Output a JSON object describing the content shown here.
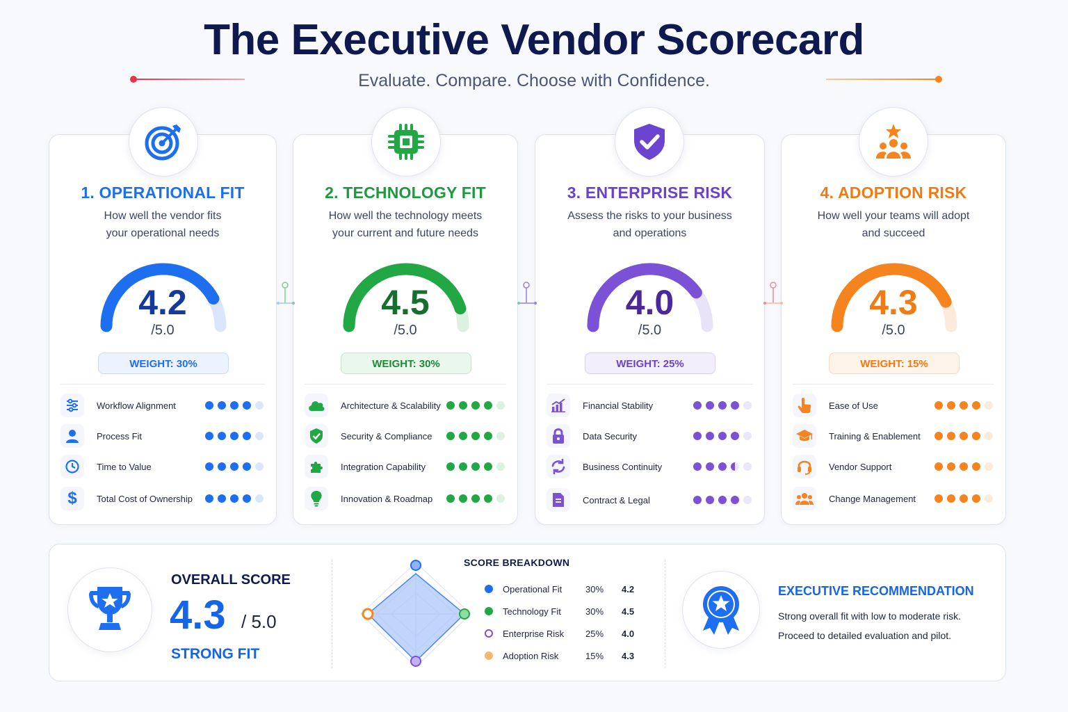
{
  "header": {
    "title": "The Executive Vendor Scorecard",
    "subtitle": "Evaluate. Compare. Choose with Confidence."
  },
  "colors": {
    "navy": "#0e1a4f",
    "operational": "#1e6ff0",
    "technology": "#21a845",
    "enterprise": "#7b52d6",
    "adoption": "#f5841f",
    "accent_red": "#e8334a"
  },
  "cards": [
    {
      "title": "1. OPERATIONAL FIT",
      "description_lines": [
        "How well the vendor fits",
        "your operational needs"
      ],
      "icon": "target-icon",
      "score": "4.2",
      "score_value": 4.2,
      "max": "/5.0",
      "weight": "WEIGHT: 30%",
      "criteria": [
        {
          "label": "Workflow Alignment",
          "icon": "sliders-icon",
          "rating": 4
        },
        {
          "label": "Process Fit",
          "icon": "user-icon",
          "rating": 4
        },
        {
          "label": "Time to Value",
          "icon": "clock-icon",
          "rating": 4
        },
        {
          "label": "Total Cost of Ownership",
          "icon": "dollar-icon",
          "rating": 4
        }
      ]
    },
    {
      "title": "2. TECHNOLOGY FIT",
      "description_lines": [
        "How well the technology meets",
        "your current and future needs"
      ],
      "icon": "chip-icon",
      "score": "4.5",
      "score_value": 4.5,
      "max": "/5.0",
      "weight": "WEIGHT: 30%",
      "criteria": [
        {
          "label": "Architecture & Scalability",
          "icon": "cloud-icon",
          "rating": 4
        },
        {
          "label": "Security & Compliance",
          "icon": "shield-check-icon",
          "rating": 4
        },
        {
          "label": "Integration Capability",
          "icon": "puzzle-icon",
          "rating": 4
        },
        {
          "label": "Innovation & Roadmap",
          "icon": "lightbulb-icon",
          "rating": 4
        }
      ]
    },
    {
      "title": "3. ENTERPRISE RISK",
      "description_lines": [
        "Assess the risks to your business",
        "and operations"
      ],
      "icon": "shield-check-icon",
      "score": "4.0",
      "score_value": 4.0,
      "max": "/5.0",
      "weight": "WEIGHT: 25%",
      "criteria": [
        {
          "label": "Financial Stability",
          "icon": "bar-chart-icon",
          "rating": 4
        },
        {
          "label": "Data Security",
          "icon": "lock-icon",
          "rating": 4
        },
        {
          "label": "Business Continuity",
          "icon": "refresh-icon",
          "rating": 3.5
        },
        {
          "label": "Contract & Legal",
          "icon": "document-icon",
          "rating": 4
        }
      ]
    },
    {
      "title": "4. ADOPTION RISK",
      "description_lines": [
        "How well your teams will adopt",
        "and succeed"
      ],
      "icon": "team-star-icon",
      "score": "4.3",
      "score_value": 4.3,
      "max": "/5.0",
      "weight": "WEIGHT: 15%",
      "criteria": [
        {
          "label": "Ease of Use",
          "icon": "hand-pointer-icon",
          "rating": 4
        },
        {
          "label": "Training & Enablement",
          "icon": "graduation-cap-icon",
          "rating": 4
        },
        {
          "label": "Vendor Support",
          "icon": "headset-icon",
          "rating": 4
        },
        {
          "label": "Change Management",
          "icon": "team-icon",
          "rating": 4
        }
      ]
    }
  ],
  "overall": {
    "label": "OVERALL SCORE",
    "score": "4.3",
    "max": "/ 5.0",
    "verdict": "STRONG FIT"
  },
  "breakdown": {
    "title": "SCORE BREAKDOWN",
    "rows": [
      {
        "name": "Operational Fit",
        "weight": "30%",
        "score": "4.2"
      },
      {
        "name": "Technology Fit",
        "weight": "30%",
        "score": "4.5"
      },
      {
        "name": "Enterprise Risk",
        "weight": "25%",
        "score": "4.0"
      },
      {
        "name": "Adoption Risk",
        "weight": "15%",
        "score": "4.3"
      }
    ]
  },
  "recommendation": {
    "title": "EXECUTIVE RECOMMENDATION",
    "lines": [
      "Strong overall fit with low to moderate risk.",
      "Proceed to detailed evaluation and pilot."
    ]
  }
}
